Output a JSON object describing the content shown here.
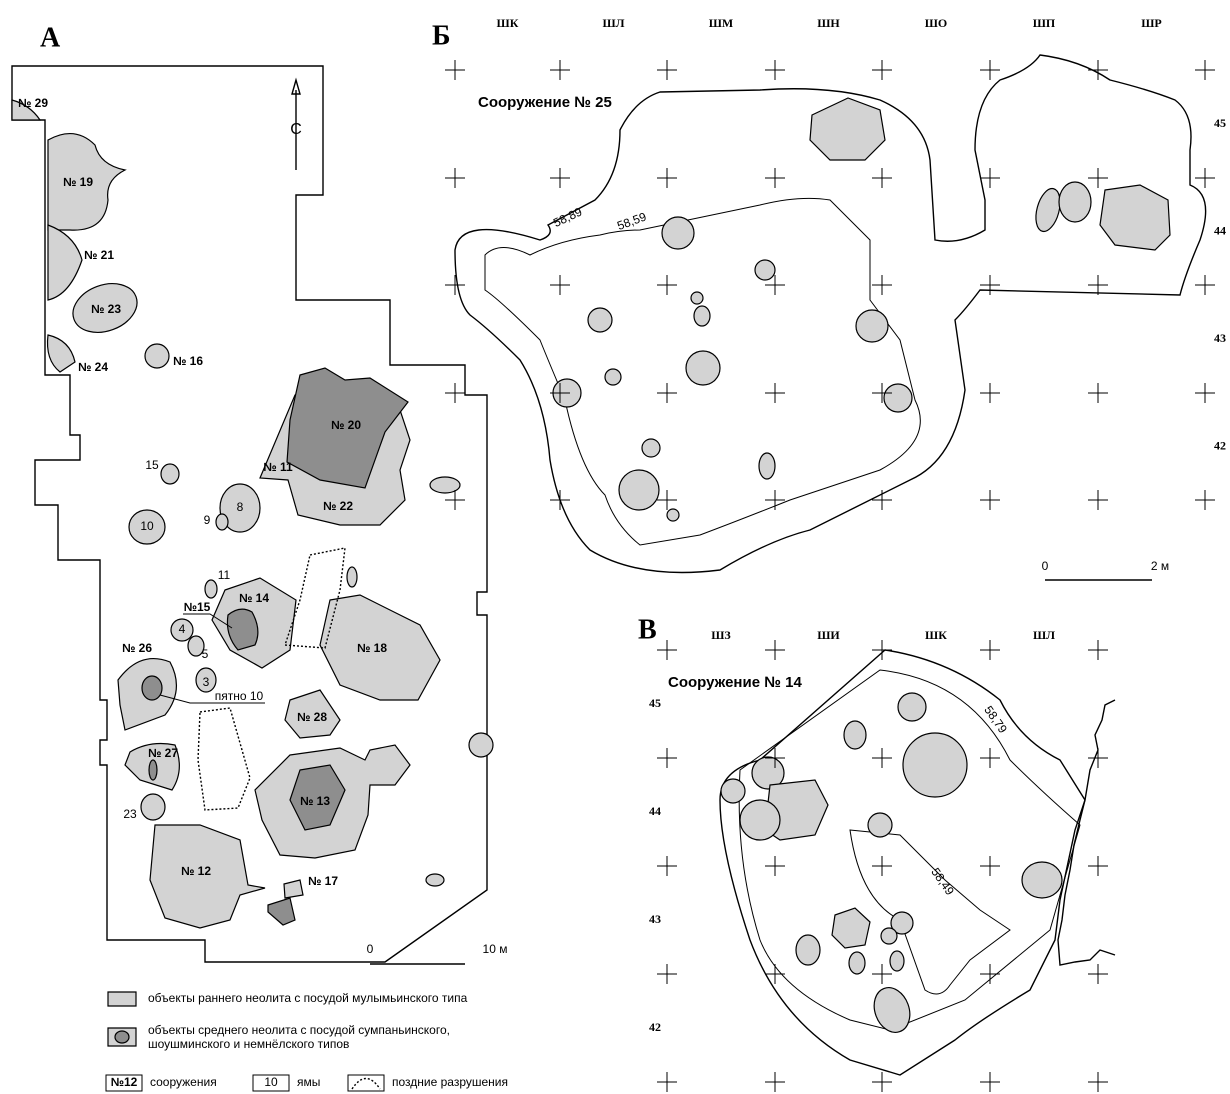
{
  "panel_a": {
    "letter": "А",
    "north": "С",
    "labels": [
      "№ 29",
      "№ 19",
      "№ 21",
      "№ 23",
      "№ 24",
      "№ 16",
      "№ 20",
      "№ 11",
      "№ 22",
      "15",
      "10",
      "9",
      "8",
      "11",
      "№15",
      "№ 14",
      "4",
      "5",
      "3",
      "№ 26",
      "пятно 10",
      "№ 28",
      "№ 27",
      "№ 13",
      "№ 18",
      "23",
      "№ 12",
      "№ 17"
    ],
    "scale": {
      "start": "0",
      "end": "10 м"
    }
  },
  "legend": {
    "early": "объекты раннего неолита с посудой мулымьинского типа",
    "middle_1": "объекты среднего неолита с посудой сумпаньинского,",
    "middle_2": "шоушминского и немнёлского типов",
    "structure_sample": "№12",
    "structure": "сооружения",
    "pit_sample": "10",
    "pit": "ямы",
    "destruction": "поздние разрушения"
  },
  "panel_b": {
    "letter": "Б",
    "title": "Сооружение № 25",
    "columns": [
      "ШК",
      "ШЛ",
      "ШМ",
      "ШН",
      "ШО",
      "ШП",
      "ШР"
    ],
    "rows": [
      "45",
      "44",
      "43",
      "42"
    ],
    "contours": [
      "58,89",
      "58,59"
    ],
    "scale": {
      "start": "0",
      "end": "2 м"
    }
  },
  "panel_c": {
    "letter": "В",
    "title": "Сооружение № 14",
    "columns": [
      "ШЗ",
      "ШИ",
      "ШК",
      "ШЛ"
    ],
    "rows": [
      "45",
      "44",
      "43",
      "42"
    ],
    "contours": [
      "58,79",
      "58,49"
    ]
  }
}
